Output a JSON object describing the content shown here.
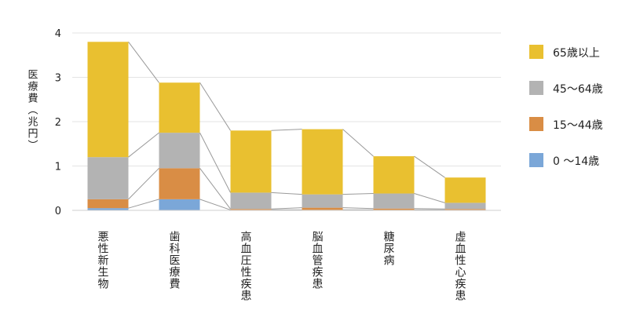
{
  "chart_data": {
    "type": "bar",
    "stacked": true,
    "ylabel": "医療費（兆円）",
    "ylim": [
      0,
      4
    ],
    "yticks": [
      0,
      1,
      2,
      3,
      4
    ],
    "grid": true,
    "legend_position": "right",
    "categories": [
      "悪性新生物",
      "歯科医療費",
      "高血圧性疾患",
      "脳血管疾患",
      "糖尿病",
      "虚血性心疾患"
    ],
    "series": [
      {
        "name": "0 ～14歳",
        "color": "#7ba7d8",
        "values": [
          0.05,
          0.25,
          0.01,
          0.01,
          0.01,
          0.01
        ]
      },
      {
        "name": "15～44歳",
        "color": "#d98d45",
        "values": [
          0.2,
          0.7,
          0.02,
          0.05,
          0.03,
          0.02
        ]
      },
      {
        "name": "45～64歳",
        "color": "#b3b3b3",
        "values": [
          0.95,
          0.8,
          0.37,
          0.3,
          0.34,
          0.14
        ]
      },
      {
        "name": "65歳以上",
        "color": "#e9c030",
        "values": [
          2.6,
          1.13,
          1.4,
          1.47,
          0.84,
          0.57
        ]
      }
    ],
    "legend_order": [
      "65歳以上",
      "45～64歳",
      "15～44歳",
      "0 ～14歳"
    ]
  }
}
